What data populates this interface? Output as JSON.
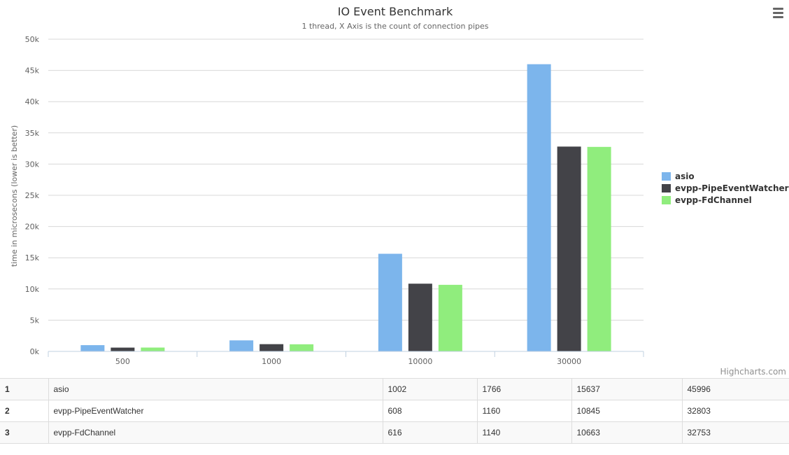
{
  "chart_data": {
    "type": "bar",
    "title": "IO Event Benchmark",
    "subtitle": "1 thread, X Axis is the count of connection pipes",
    "ylabel": "time in microsecons (lower is better)",
    "xlabel": "",
    "ylim": [
      0,
      50000
    ],
    "yticks": [
      0,
      5000,
      10000,
      15000,
      20000,
      25000,
      30000,
      35000,
      40000,
      45000,
      50000
    ],
    "ytick_labels": [
      "0k",
      "5k",
      "10k",
      "15k",
      "20k",
      "25k",
      "30k",
      "35k",
      "40k",
      "45k",
      "50k"
    ],
    "categories": [
      "500",
      "1000",
      "10000",
      "30000"
    ],
    "grid": true,
    "legend_position": "right",
    "series": [
      {
        "name": "asio",
        "color": "#7cb5ec",
        "values": [
          1002,
          1766,
          15637,
          45996
        ]
      },
      {
        "name": "evpp-PipeEventWatcher",
        "color": "#434348",
        "values": [
          608,
          1160,
          10845,
          32803
        ]
      },
      {
        "name": "evpp-FdChannel",
        "color": "#90ed7d",
        "values": [
          616,
          1140,
          10663,
          32753
        ]
      }
    ],
    "credits": "Highcharts.com"
  },
  "table": {
    "rows": [
      {
        "index": "1",
        "name": "asio",
        "values": [
          "1002",
          "1766",
          "15637",
          "45996"
        ]
      },
      {
        "index": "2",
        "name": "evpp-PipeEventWatcher",
        "values": [
          "608",
          "1160",
          "10845",
          "32803"
        ]
      },
      {
        "index": "3",
        "name": "evpp-FdChannel",
        "values": [
          "616",
          "1140",
          "10663",
          "32753"
        ]
      }
    ]
  }
}
